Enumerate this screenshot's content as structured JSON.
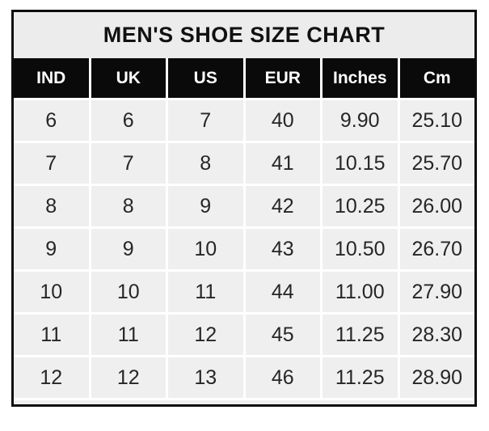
{
  "colors": {
    "header_bg": "#0a0a0a",
    "header_fg": "#ffffff",
    "row_bg": "#efefef",
    "title_bg": "#ececec",
    "border": "#0d0d0d",
    "cell_fg": "#262626"
  },
  "chart_data": {
    "type": "table",
    "title": "MEN'S SHOE SIZE CHART",
    "columns": [
      "IND",
      "UK",
      "US",
      "EUR",
      "Inches",
      "Cm"
    ],
    "rows": [
      [
        "6",
        "6",
        "7",
        "40",
        "9.90",
        "25.10"
      ],
      [
        "7",
        "7",
        "8",
        "41",
        "10.15",
        "25.70"
      ],
      [
        "8",
        "8",
        "9",
        "42",
        "10.25",
        "26.00"
      ],
      [
        "9",
        "9",
        "10",
        "43",
        "10.50",
        "26.70"
      ],
      [
        "10",
        "10",
        "11",
        "44",
        "11.00",
        "27.90"
      ],
      [
        "11",
        "11",
        "12",
        "45",
        "11.25",
        "28.30"
      ],
      [
        "12",
        "12",
        "13",
        "46",
        "11.25",
        "28.90"
      ]
    ]
  }
}
